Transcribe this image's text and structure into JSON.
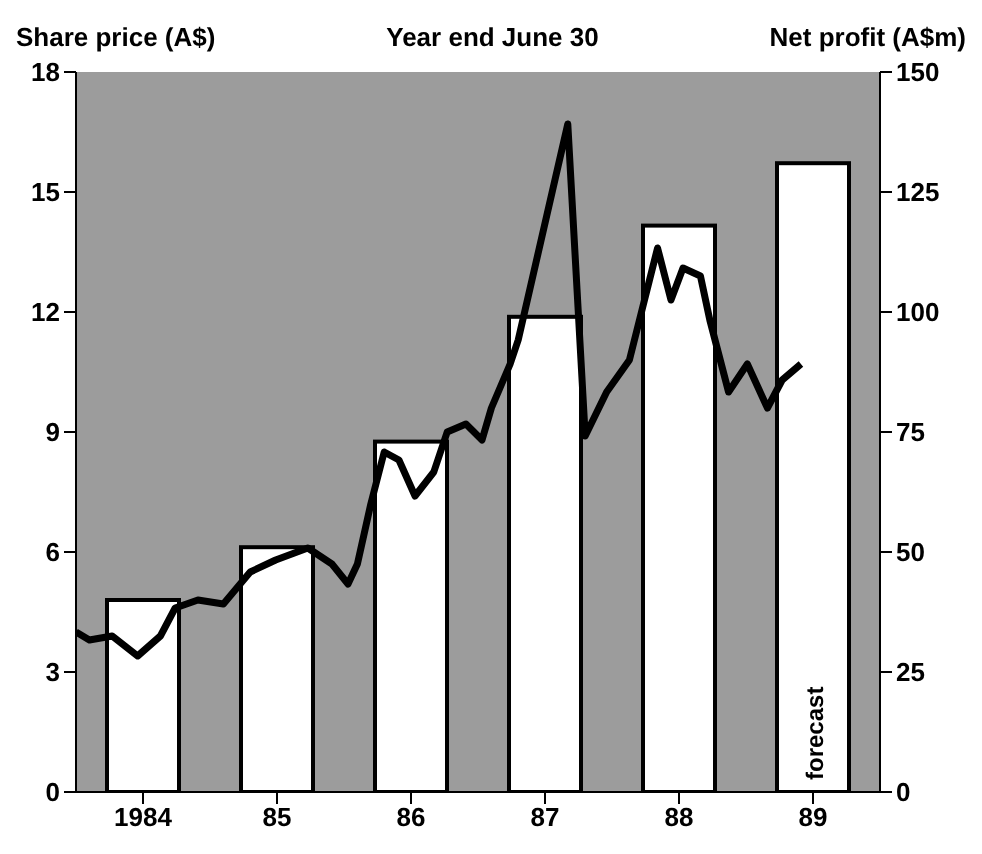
{
  "chart_data": {
    "type": "bar",
    "title": "Year end June 30",
    "ylabel": "Share price (A$)",
    "y2label": "Net profit (A$m)",
    "x": [
      1984,
      1985,
      1986,
      1987,
      1988,
      1989
    ],
    "xlim": [
      1983.5,
      1989.5
    ],
    "xticks": [
      {
        "value": 1984,
        "label": "1984"
      },
      {
        "value": 1985,
        "label": "85"
      },
      {
        "value": 1986,
        "label": "86"
      },
      {
        "value": 1987,
        "label": "87"
      },
      {
        "value": 1988,
        "label": "88"
      },
      {
        "value": 1989,
        "label": "89"
      }
    ],
    "ylim": [
      0,
      18
    ],
    "yticks": [
      0,
      3,
      6,
      9,
      12,
      15,
      18
    ],
    "y2lim": [
      0,
      150
    ],
    "y2ticks": [
      0,
      25,
      50,
      75,
      100,
      125,
      150
    ],
    "series": [
      {
        "axis": "y2",
        "color": "#ffffff",
        "values": [
          40,
          51,
          73,
          99,
          118,
          131
        ]
      },
      {
        "type": "line",
        "axis": "y",
        "color": "#000000",
        "x": [
          1983.5,
          1983.6,
          1983.77,
          1983.96,
          1984.13,
          1984.24,
          1984.41,
          1984.6,
          1984.8,
          1984.99,
          1985.23,
          1985.41,
          1985.53,
          1985.6,
          1985.7,
          1985.8,
          1985.91,
          1986.03,
          1986.17,
          1986.27,
          1986.41,
          1986.53,
          1986.6,
          1986.74,
          1986.8,
          1987.17,
          1987.3,
          1987.46,
          1987.63,
          1987.84,
          1987.94,
          1988.03,
          1988.16,
          1988.23,
          1988.37,
          1988.51,
          1988.66,
          1988.77,
          1988.91
        ],
        "values": [
          4.0,
          3.8,
          3.9,
          3.4,
          3.9,
          4.6,
          4.8,
          4.7,
          5.5,
          5.8,
          6.1,
          5.7,
          5.2,
          5.7,
          7.2,
          8.5,
          8.3,
          7.4,
          8.0,
          9.0,
          9.2,
          8.8,
          9.6,
          10.7,
          11.3,
          16.7,
          8.9,
          10.0,
          10.8,
          13.6,
          12.3,
          13.1,
          12.9,
          11.8,
          10.0,
          10.7,
          9.6,
          10.3,
          10.7
        ]
      }
    ],
    "annotations": [
      "forecast"
    ]
  }
}
